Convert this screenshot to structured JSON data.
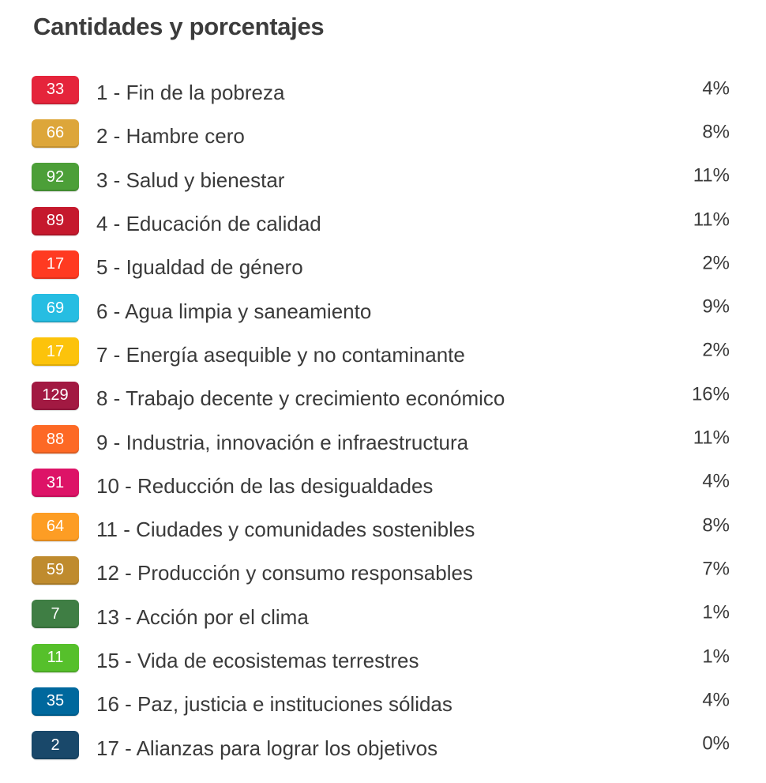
{
  "title": "Cantidades y porcentajes",
  "rows": [
    {
      "count": "33",
      "label": "1 - Fin de la pobreza",
      "percent": "4%",
      "color": "#e5243b"
    },
    {
      "count": "66",
      "label": "2 - Hambre cero",
      "percent": "8%",
      "color": "#dda63a"
    },
    {
      "count": "92",
      "label": "3 - Salud y bienestar",
      "percent": "11%",
      "color": "#4c9f38"
    },
    {
      "count": "89",
      "label": "4 - Educación de calidad",
      "percent": "11%",
      "color": "#c5192d"
    },
    {
      "count": "17",
      "label": "5 - Igualdad de género",
      "percent": "2%",
      "color": "#ff3a21"
    },
    {
      "count": "69",
      "label": "6 - Agua limpia y saneamiento",
      "percent": "9%",
      "color": "#26bde2"
    },
    {
      "count": "17",
      "label": "7 - Energía asequible y no contaminante",
      "percent": "2%",
      "color": "#fcc30b"
    },
    {
      "count": "129",
      "label": "8 - Trabajo decente y crecimiento económico",
      "percent": "16%",
      "color": "#a21942"
    },
    {
      "count": "88",
      "label": "9 - Industria, innovación e infraestructura",
      "percent": "11%",
      "color": "#fd6925"
    },
    {
      "count": "31",
      "label": "10 - Reducción de las desigualdades",
      "percent": "4%",
      "color": "#dd1367"
    },
    {
      "count": "64",
      "label": "11 - Ciudades y comunidades sostenibles",
      "percent": "8%",
      "color": "#fd9d24"
    },
    {
      "count": "59",
      "label": "12 - Producción y consumo responsables",
      "percent": "7%",
      "color": "#bf8b2e"
    },
    {
      "count": "7",
      "label": "13 - Acción por el clima",
      "percent": "1%",
      "color": "#3f7e44"
    },
    {
      "count": "11",
      "label": "15 - Vida de ecosistemas terrestres",
      "percent": "1%",
      "color": "#56c02b"
    },
    {
      "count": "35",
      "label": "16 - Paz, justicia e instituciones sólidas",
      "percent": "4%",
      "color": "#00689d"
    },
    {
      "count": "2",
      "label": "17 - Alianzas para lograr los objetivos",
      "percent": "0%",
      "color": "#19486a"
    }
  ]
}
